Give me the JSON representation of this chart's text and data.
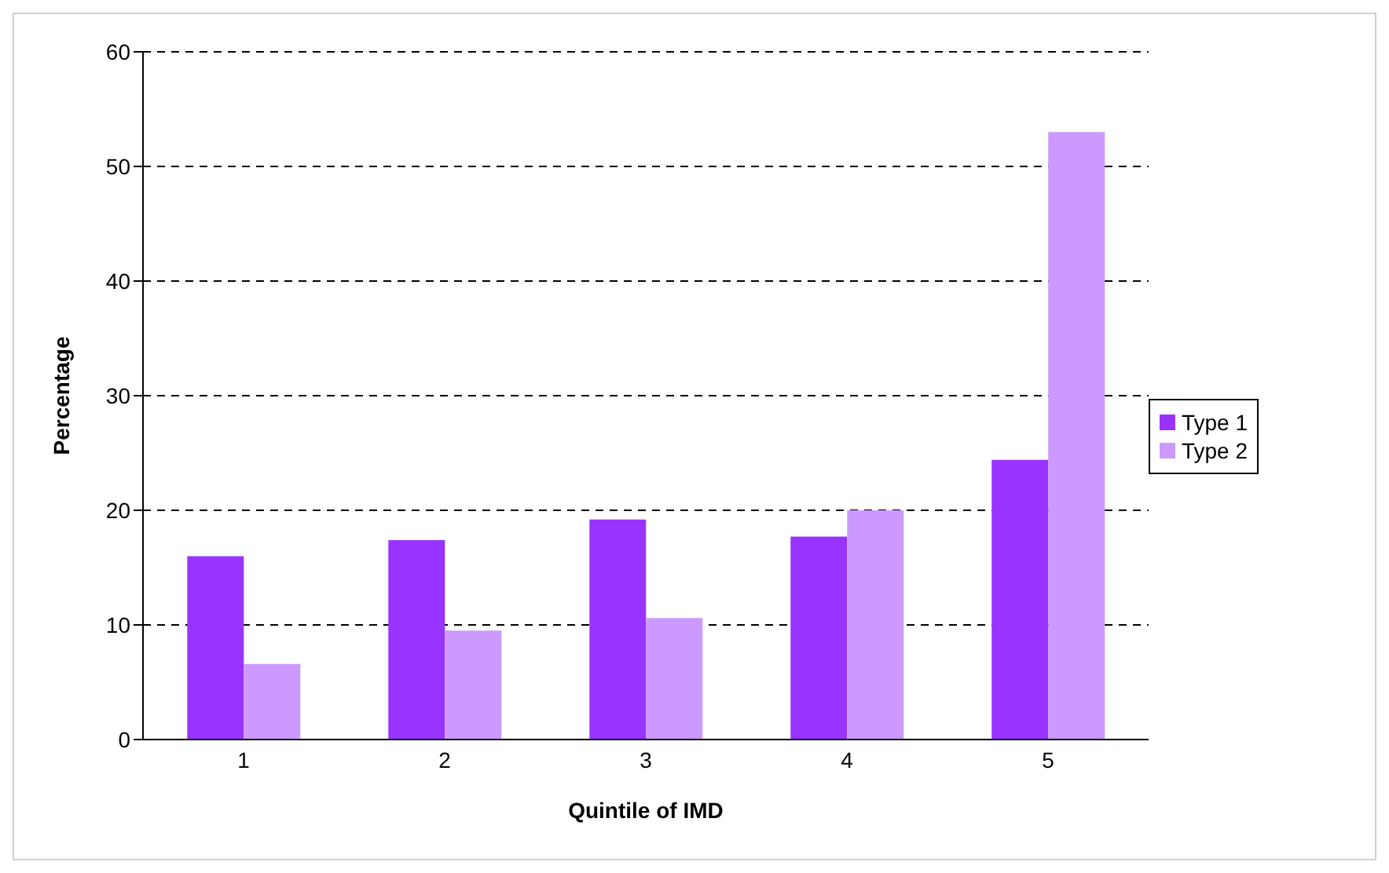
{
  "chart_data": {
    "type": "bar",
    "xlabel": "Quintile of IMD",
    "ylabel": "Percentage",
    "categories": [
      "1",
      "2",
      "3",
      "4",
      "5"
    ],
    "series": [
      {
        "name": "Type 1",
        "color": "#9933ff",
        "values": [
          16,
          17.4,
          19.2,
          17.7,
          24.4
        ]
      },
      {
        "name": "Type 2",
        "color": "#cc99ff",
        "values": [
          6.6,
          9.5,
          10.6,
          20,
          53
        ]
      }
    ],
    "ylim": [
      0,
      60
    ],
    "yticks": [
      0,
      10,
      20,
      30,
      40,
      50,
      60
    ],
    "grid": "y",
    "legend": "right"
  }
}
